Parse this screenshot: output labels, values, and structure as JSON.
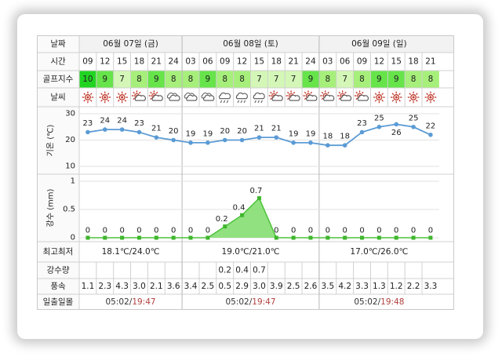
{
  "labels": {
    "date": "날짜",
    "time": "시간",
    "golf_index": "골프지수",
    "weather": "날씨",
    "temp_axis": "기온 (℃)",
    "precip_axis": "강수 (mm)",
    "minmax": "최고최저",
    "precip_amount": "강수량",
    "wind": "풍속",
    "sunrise_sunset": "일출일몰"
  },
  "days": [
    {
      "label": "06월 07일 (금)",
      "minmax": "18.1℃/24.0℃",
      "sun": "05:02/19:47"
    },
    {
      "label": "06월 08일 (토)",
      "minmax": "19.0℃/21.0℃",
      "sun": "05:02/19:47"
    },
    {
      "label": "06월 09일 (일)",
      "minmax": "17.0℃/26.0℃",
      "sun": "05:02/19:48"
    }
  ],
  "hours": [
    "09",
    "12",
    "15",
    "18",
    "21",
    "24",
    "03",
    "06",
    "09",
    "12",
    "15",
    "18",
    "21",
    "24",
    "03",
    "06",
    "09",
    "12",
    "15",
    "18",
    "21"
  ],
  "golf": [
    "10",
    "9",
    "7",
    "8",
    "9",
    "8",
    "8",
    "9",
    "8",
    "8",
    "7",
    "7",
    "7",
    "9",
    "8",
    "7",
    "8",
    "9",
    "9",
    "8",
    "8"
  ],
  "weather_icons": [
    "sun-icon",
    "sun-icon",
    "sun-icon",
    "partly-cloudy-icon",
    "partly-cloudy-icon",
    "cloudy-icon",
    "cloudy-icon",
    "cloudy-icon",
    "rain-icon",
    "rain-icon",
    "rain-icon",
    "partly-cloudy-icon",
    "partly-cloudy-icon",
    "partly-cloudy-icon",
    "partly-cloudy-icon",
    "partly-cloudy-icon",
    "partly-cloudy-icon",
    "sun-icon",
    "sun-icon",
    "sun-icon",
    "sun-icon"
  ],
  "precip_text": [
    "",
    "",
    "",
    "",
    "",
    "",
    "",
    "",
    "0.2",
    "0.4",
    "0.7",
    "",
    "",
    "",
    "",
    "",
    "",
    "",
    "",
    "",
    ""
  ],
  "wind": [
    "1.1",
    "2.3",
    "4.3",
    "3.0",
    "2.1",
    "3.6",
    "3.4",
    "2.5",
    "0.5",
    "2.9",
    "3.0",
    "3.9",
    "2.5",
    "2.6",
    "3.5",
    "4.2",
    "3.3",
    "1.3",
    "1.2",
    "2.2",
    "3.3"
  ],
  "colors": {
    "golf_10": "#22d422",
    "golf_9": "#66e44a",
    "golf_8": "#a6ef7a",
    "golf_7": "#d4f7b8",
    "line": "#5b9bd5",
    "area": "#7edc6a",
    "sun": "#c0392b",
    "header_bg": "#f2f2f2"
  },
  "chart_data": [
    {
      "type": "line",
      "ylabel": "기온 (℃)",
      "ylim": [
        10,
        30
      ],
      "yticks": [
        10,
        20,
        30
      ],
      "x": [
        "09",
        "12",
        "15",
        "18",
        "21",
        "24",
        "03",
        "06",
        "09",
        "12",
        "15",
        "18",
        "21",
        "24",
        "03",
        "06",
        "09",
        "12",
        "15",
        "18",
        "21"
      ],
      "values": [
        23,
        24,
        24,
        23,
        21,
        20,
        19,
        19,
        20,
        20,
        21,
        21,
        19,
        19,
        18,
        18,
        23,
        25,
        26,
        25,
        22
      ],
      "grid": true
    },
    {
      "type": "area",
      "ylabel": "강수 (mm)",
      "ylim": [
        0,
        1
      ],
      "yticks": [
        "0",
        "0.5",
        "1"
      ],
      "x": [
        "09",
        "12",
        "15",
        "18",
        "21",
        "24",
        "03",
        "06",
        "09",
        "12",
        "15",
        "18",
        "21",
        "24",
        "03",
        "06",
        "09",
        "12",
        "15",
        "18",
        "21"
      ],
      "values": [
        0,
        0,
        0,
        0,
        0,
        0,
        0,
        0,
        0.2,
        0.4,
        0.7,
        0,
        0,
        0,
        0,
        0,
        0,
        0,
        0,
        0,
        0
      ],
      "grid": true
    }
  ]
}
